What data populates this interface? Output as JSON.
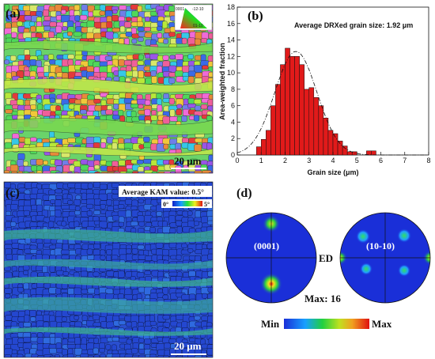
{
  "panel_a": {
    "label": "(a)",
    "scale_bar": "20 μm",
    "ipf_key": {
      "label_0001": "0001",
      "label_11_20": "-12-10",
      "label_10_10": "01-10"
    }
  },
  "panel_c": {
    "label": "(c)",
    "annotation": "Average KAM value: 0.5°",
    "scale_bar": "20 μm",
    "kam_min": "0°",
    "kam_max": "5°"
  },
  "panel_d": {
    "label": "(d)",
    "pf1_label": "(0001)",
    "pf2_label": "(10-10)",
    "direction_label": "ED",
    "max_label": "Max: 16",
    "legend_min": "Min",
    "legend_max": "Max"
  },
  "chart_data": {
    "type": "bar",
    "panel_label": "(b)",
    "annotation": "Average DRXed grain size: 1.92 μm",
    "xlabel": "Grain size (μm)",
    "ylabel": "Area-weighted fraction",
    "xlim": [
      0,
      8
    ],
    "ylim": [
      0,
      18
    ],
    "xticks": [
      0,
      1,
      2,
      3,
      4,
      5,
      6,
      7,
      8
    ],
    "yticks": [
      0,
      2,
      4,
      6,
      8,
      10,
      12,
      14,
      16,
      18
    ],
    "bin_width": 0.2,
    "bins": [
      {
        "x": 0.9,
        "y": 1.0
      },
      {
        "x": 1.1,
        "y": 1.9
      },
      {
        "x": 1.3,
        "y": 3.0
      },
      {
        "x": 1.5,
        "y": 6.0
      },
      {
        "x": 1.7,
        "y": 8.6
      },
      {
        "x": 1.9,
        "y": 11.0
      },
      {
        "x": 2.1,
        "y": 13.0
      },
      {
        "x": 2.3,
        "y": 12.0
      },
      {
        "x": 2.5,
        "y": 12.0
      },
      {
        "x": 2.7,
        "y": 11.0
      },
      {
        "x": 2.9,
        "y": 8.0
      },
      {
        "x": 3.1,
        "y": 8.2
      },
      {
        "x": 3.3,
        "y": 7.0
      },
      {
        "x": 3.5,
        "y": 6.0
      },
      {
        "x": 3.7,
        "y": 4.5
      },
      {
        "x": 3.9,
        "y": 3.0
      },
      {
        "x": 4.1,
        "y": 2.6
      },
      {
        "x": 4.3,
        "y": 1.7
      },
      {
        "x": 4.5,
        "y": 1.1
      },
      {
        "x": 4.7,
        "y": 0.4
      },
      {
        "x": 4.9,
        "y": 0.4
      },
      {
        "x": 5.5,
        "y": 0.5
      },
      {
        "x": 5.7,
        "y": 0.5
      }
    ],
    "fit_curve": {
      "style": "dash-dot",
      "type": "normal",
      "mean": 2.45,
      "sd": 0.88,
      "peak": 12.6
    },
    "bar_color": "#e11a1a",
    "grid": false
  }
}
